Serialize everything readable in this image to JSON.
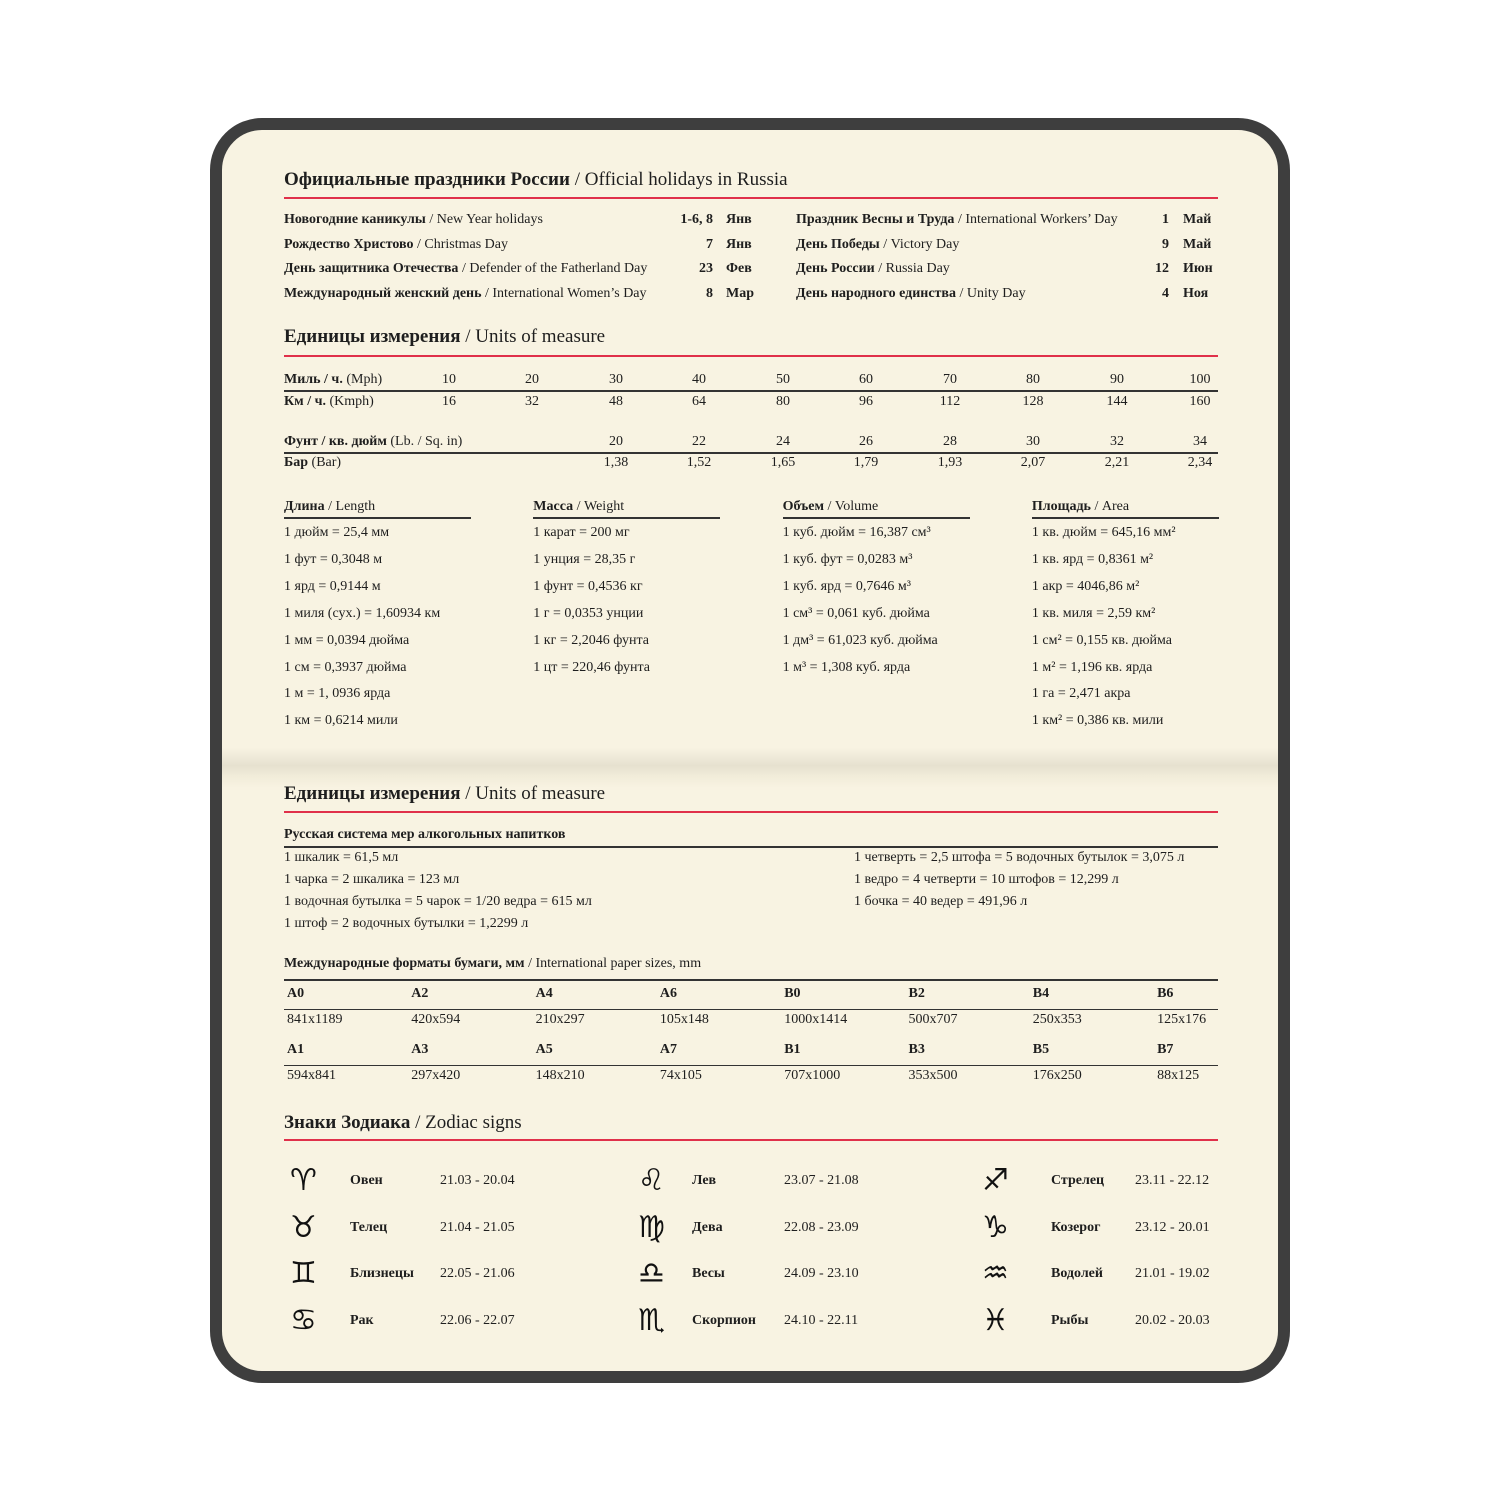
{
  "holidays": {
    "title_ru": "Официальные праздники России",
    "title_en": "/ Official holidays in Russia",
    "left": [
      {
        "ru": "Новогодние каникулы",
        "en": "/ New Year holidays",
        "day": "1-6, 8",
        "month": "Янв"
      },
      {
        "ru": "Рождество Христово",
        "en": "/ Christmas Day",
        "day": "7",
        "month": "Янв"
      },
      {
        "ru": "День защитника Отечества",
        "en": "/ Defender of the Fatherland Day",
        "day": "23",
        "month": "Фев"
      },
      {
        "ru": "Международный женский день",
        "en": "/ International Women’s Day",
        "day": "8",
        "month": "Мар"
      }
    ],
    "right": [
      {
        "ru": "Праздник Весны и Труда",
        "en": "/ International Workers’ Day",
        "day": "1",
        "month": "Май"
      },
      {
        "ru": "День Победы",
        "en": "/ Victory Day",
        "day": "9",
        "month": "Май"
      },
      {
        "ru": "День России",
        "en": "/ Russia Day",
        "day": "12",
        "month": "Июн"
      },
      {
        "ru": "День народного единства",
        "en": "/ Unity Day",
        "day": "4",
        "month": "Ноя"
      }
    ]
  },
  "units": {
    "title_ru": "Единицы измерения",
    "title_en": "/ Units of measure",
    "speed": {
      "mph_ru": "Миль / ч.",
      "mph_en": "(Mph)",
      "mph": [
        "10",
        "20",
        "30",
        "40",
        "50",
        "60",
        "70",
        "80",
        "90",
        "100"
      ],
      "kmh_ru": "Км / ч.",
      "kmh_en": "(Kmph)",
      "kmh": [
        "16",
        "32",
        "48",
        "64",
        "80",
        "96",
        "112",
        "128",
        "144",
        "160"
      ]
    },
    "pressure": {
      "psi_ru": "Фунт / кв. дюйм",
      "psi_en": "(Lb. / Sq. in)",
      "psi": [
        "20",
        "22",
        "24",
        "26",
        "28",
        "30",
        "32",
        "34"
      ],
      "bar_ru": "Бар",
      "bar_en": "(Bar)",
      "bar": [
        "1,38",
        "1,52",
        "1,65",
        "1,79",
        "1,93",
        "2,07",
        "2,21",
        "2,34"
      ]
    },
    "columns": [
      {
        "ru": "Длина",
        "en": "/ Length",
        "items": [
          "1 дюйм = 25,4 мм",
          "1 фут = 0,3048 м",
          "1 ярд = 0,9144 м",
          "1 миля (сух.) = 1,60934 км",
          "1 мм = 0,0394 дюйма",
          "1 см = 0,3937 дюйма",
          "1 м = 1, 0936 ярда",
          "1 км = 0,6214 мили"
        ]
      },
      {
        "ru": "Масса",
        "en": "/ Weight",
        "items": [
          "1 карат = 200 мг",
          "1 унция = 28,35 г",
          "1 фунт = 0,4536 кг",
          "1 г = 0,0353 унции",
          "1 кг = 2,2046 фунта",
          "1 цт = 220,46 фунта"
        ]
      },
      {
        "ru": "Объем",
        "en": "/ Volume",
        "items": [
          "1 куб. дюйм = 16,387 см³",
          "1 куб. фут = 0,0283 м³",
          "1 куб. ярд = 0,7646 м³",
          "1 см³ = 0,061 куб. дюйма",
          "1 дм³ = 61,023 куб. дюйма",
          "1 м³ = 1,308 куб. ярда"
        ]
      },
      {
        "ru": "Площадь",
        "en": "/ Area",
        "items": [
          "1 кв. дюйм = 645,16 мм²",
          "1 кв. ярд = 0,8361 м²",
          "1 акр = 4046,86 м²",
          "1 кв. миля = 2,59 км²",
          "1 см² = 0,155 кв. дюйма",
          "1 м² = 1,196 кв. ярда",
          "1 га = 2,471 акра",
          "1 км² = 0,386 кв. мили"
        ]
      }
    ]
  },
  "units2": {
    "title_ru": "Единицы измерения",
    "title_en": "/ Units of measure",
    "alcohol": {
      "title": "Русская система мер алкогольных напитков",
      "left": [
        "1 шкалик = 61,5 мл",
        "1 чарка = 2 шкалика = 123 мл",
        "1 водочная бутылка = 5 чарок = 1/20 ведра = 615 мл",
        "1 штоф = 2 водочных бутылки = 1,2299 л"
      ],
      "right": [
        "1 четверть = 2,5 штофа = 5 водочных бутылок =  3,075 л",
        "1 ведро = 4 четверти = 10 штофов = 12,299 л",
        "1 бочка = 40 ведер = 491,96 л"
      ]
    },
    "paper": {
      "title_ru": "Международные форматы бумаги, мм",
      "title_en": "/ International paper sizes, mm",
      "rows": [
        {
          "names": [
            "A0",
            "A2",
            "A4",
            "A6",
            "B0",
            "B2",
            "B4",
            "B6"
          ],
          "sizes": [
            "841x1189",
            "420x594",
            "210x297",
            "105x148",
            "1000x1414",
            "500x707",
            "250x353",
            "125x176"
          ]
        },
        {
          "names": [
            "A1",
            "A3",
            "A5",
            "A7",
            "B1",
            "B3",
            "B5",
            "B7"
          ],
          "sizes": [
            "594x841",
            "297x420",
            "148x210",
            "74x105",
            "707x1000",
            "353x500",
            "176x250",
            "88x125"
          ]
        }
      ]
    }
  },
  "zodiac": {
    "title_ru": "Знаки Зодиака",
    "title_en": "/ Zodiac signs",
    "columns": [
      [
        {
          "icon": "aries-icon",
          "glyph": "♈",
          "name": "Овен",
          "dates": "21.03 - 20.04"
        },
        {
          "icon": "taurus-icon",
          "glyph": "♉",
          "name": "Телец",
          "dates": "21.04 - 21.05"
        },
        {
          "icon": "gemini-icon",
          "glyph": "♊",
          "name": "Близнецы",
          "dates": "22.05 - 21.06"
        },
        {
          "icon": "cancer-icon",
          "glyph": "♋",
          "name": "Рак",
          "dates": "22.06 - 22.07"
        }
      ],
      [
        {
          "icon": "leo-icon",
          "glyph": "♌",
          "name": "Лев",
          "dates": "23.07 - 21.08"
        },
        {
          "icon": "virgo-icon",
          "glyph": "♍",
          "name": "Дева",
          "dates": "22.08 - 23.09"
        },
        {
          "icon": "libra-icon",
          "glyph": "♎",
          "name": "Весы",
          "dates": "24.09 - 23.10"
        },
        {
          "icon": "scorpio-icon",
          "glyph": "♏",
          "name": "Скорпион",
          "dates": "24.10 - 22.11"
        }
      ],
      [
        {
          "icon": "sagittarius-icon",
          "glyph": "♐",
          "name": "Стрелец",
          "dates": "23.11 - 22.12"
        },
        {
          "icon": "capricorn-icon",
          "glyph": "♑",
          "name": "Козерог",
          "dates": "23.12 - 20.01"
        },
        {
          "icon": "aquarius-icon",
          "glyph": "♒",
          "name": "Водолей",
          "dates": "21.01 - 19.02"
        },
        {
          "icon": "pisces-icon",
          "glyph": "♓",
          "name": "Рыбы",
          "dates": "20.02 - 20.03"
        }
      ]
    ]
  },
  "colors": {
    "accent_line": "#e0304a",
    "frame": "#3e3e3e",
    "paper": "#f8f3e2"
  }
}
